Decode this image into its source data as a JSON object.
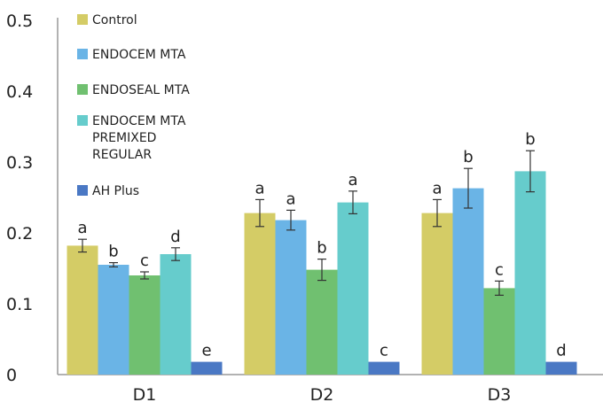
{
  "chart_data": {
    "type": "bar",
    "title": "",
    "xlabel": "",
    "ylabel": "",
    "ylim": [
      0,
      0.5
    ],
    "yticks": [
      "0",
      "0.1",
      "0.2",
      "0.3",
      "0.4",
      "0.5"
    ],
    "grid": false,
    "legend_position": "top-left",
    "categories": [
      "D1",
      "D2",
      "D3"
    ],
    "series": [
      {
        "name": "Control",
        "color": "#d4cc66",
        "values": [
          0.182,
          0.228,
          0.228
        ],
        "errors": [
          0.009,
          0.019,
          0.019
        ],
        "labels": [
          "a",
          "a",
          "a"
        ]
      },
      {
        "name": "ENDOCEM MTA",
        "color": "#6ab4e6",
        "values": [
          0.155,
          0.218,
          0.263
        ],
        "errors": [
          0.003,
          0.014,
          0.028
        ],
        "labels": [
          "b",
          "a",
          "b"
        ]
      },
      {
        "name": "ENDOSEAL MTA",
        "color": "#70c070",
        "values": [
          0.14,
          0.148,
          0.122
        ],
        "errors": [
          0.005,
          0.015,
          0.01
        ],
        "labels": [
          "c",
          "b",
          "c"
        ]
      },
      {
        "name_lines": [
          "ENDOCEM MTA",
          "PREMIXED",
          "REGULAR"
        ],
        "color": "#66cccc",
        "values": [
          0.17,
          0.243,
          0.287
        ],
        "errors": [
          0.009,
          0.016,
          0.029
        ],
        "labels": [
          "d",
          "a",
          "b"
        ]
      },
      {
        "name": "AH Plus",
        "color": "#4a78c4",
        "values": [
          0.018,
          0.018,
          0.018
        ],
        "errors": [
          0,
          0,
          0
        ],
        "labels": [
          "e",
          "c",
          "d"
        ]
      }
    ]
  }
}
